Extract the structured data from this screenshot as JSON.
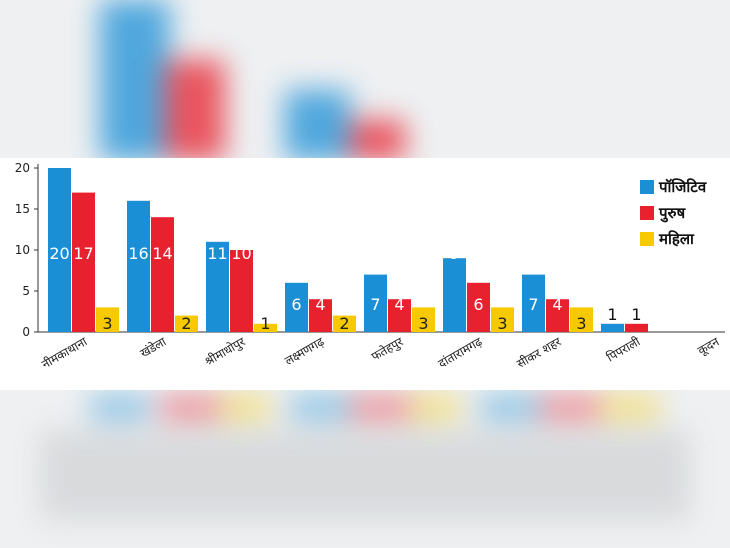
{
  "colors": {
    "positive": "#1b8fd6",
    "male": "#e8212e",
    "female": "#f7c900",
    "axis": "#333333"
  },
  "chart_data": {
    "type": "bar",
    "categories": [
      "नीमकाथाना",
      "खंडेला",
      "श्रीमाधोपुर",
      "लक्ष्मणगढ़",
      "फतेहपुर",
      "दांतारामगढ़",
      "सीकर शहर",
      "पिपराली",
      "कूदन"
    ],
    "series": [
      {
        "name": "पॉजिटिव",
        "color": "#1b8fd6",
        "values": [
          20,
          16,
          11,
          6,
          7,
          9,
          7,
          1,
          0
        ]
      },
      {
        "name": "पुरुष",
        "color": "#e8212e",
        "values": [
          17,
          14,
          10,
          4,
          4,
          6,
          4,
          1,
          0
        ]
      },
      {
        "name": "महिला",
        "color": "#f7c900",
        "values": [
          3,
          2,
          1,
          2,
          3,
          3,
          3,
          0,
          0
        ]
      }
    ],
    "yticks": [
      0,
      5,
      10,
      15,
      20
    ],
    "ylim": [
      0,
      20
    ],
    "grid": false,
    "legend_position": "top-right",
    "title": "",
    "xlabel": "",
    "ylabel": ""
  }
}
